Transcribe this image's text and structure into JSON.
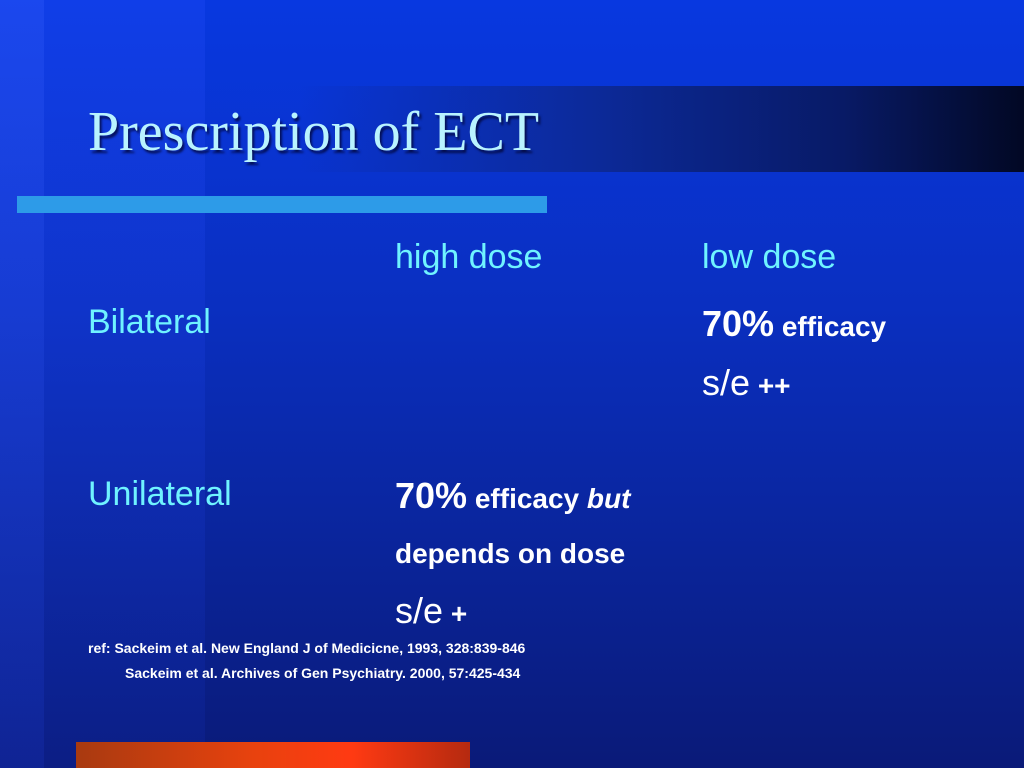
{
  "slide": {
    "title": "Prescription of ECT",
    "columns": {
      "high": "high dose",
      "low": "low dose"
    },
    "rows": {
      "bilateral": {
        "label": "Bilateral",
        "low_line1_pct": "70%",
        "low_line1_text": "efficacy",
        "low_line2_se": "s/e",
        "low_line2_mark": "++"
      },
      "unilateral": {
        "label": "Unilateral",
        "high_line1_pct": "70%",
        "high_line1_text": "efficacy",
        "high_line1_em": "but",
        "high_line2": "depends on dose",
        "high_line3_se": "s/e",
        "high_line3_mark": "+"
      }
    },
    "refs": {
      "line1": "ref: Sackeim et al. New England J of Medicicne, 1993, 328:839-846",
      "line2": "Sackeim et al. Archives of Gen Psychiatry. 2000, 57:425-434"
    },
    "colors": {
      "background": "#0a2fc0",
      "title_text": "#b9f3ff",
      "label_text": "#6ff3ff",
      "rule": "#2d9be8",
      "accent_bar": "#e8420e"
    }
  }
}
